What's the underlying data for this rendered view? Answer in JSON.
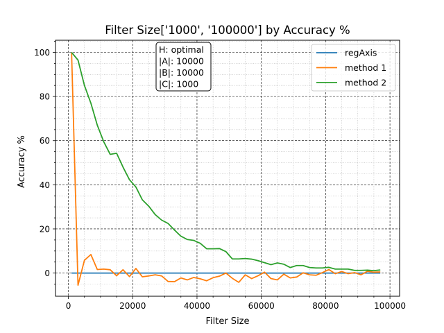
{
  "chart_data": {
    "type": "line",
    "title": "Filter Size['1000', '100000'] by Accuracy %",
    "xlabel": "Filter Size",
    "ylabel": "Accuracy %",
    "xlim": [
      -4000,
      103000
    ],
    "ylim": [
      -10.5,
      105.5
    ],
    "xticks": [
      0,
      20000,
      40000,
      60000,
      80000,
      100000
    ],
    "yticks": [
      0,
      20,
      40,
      60,
      80,
      100
    ],
    "xtick_labels": [
      "0",
      "20000",
      "40000",
      "60000",
      "80000",
      "100000"
    ],
    "ytick_labels": [
      "0",
      "20",
      "40",
      "60",
      "80",
      "100"
    ],
    "grid": true,
    "legend_position": "upper-right",
    "annotation": [
      "H: optimal",
      "|A|: 10000",
      "|B|: 10000",
      "|C|: 1000"
    ],
    "x": [
      1000,
      3000,
      5000,
      7000,
      9000,
      11000,
      13000,
      15000,
      17000,
      19000,
      21000,
      23000,
      25000,
      27000,
      29000,
      31000,
      33000,
      35000,
      37000,
      39000,
      41000,
      43000,
      45000,
      47000,
      49000,
      51000,
      53000,
      55000,
      57000,
      59000,
      61000,
      63000,
      65000,
      67000,
      69000,
      71000,
      73000,
      75000,
      77000,
      79000,
      81000,
      83000,
      85000,
      87000,
      89000,
      91000,
      93000,
      95000,
      97000
    ],
    "series": [
      {
        "name": "regAxis",
        "color": "#1f77b4",
        "values": [
          0,
          0,
          0,
          0,
          0,
          0,
          0,
          0,
          0,
          0,
          0,
          0,
          0,
          0,
          0,
          0,
          0,
          0,
          0,
          0,
          0,
          0,
          0,
          0,
          0,
          0,
          0,
          0,
          0,
          0,
          0,
          0,
          0,
          0,
          0,
          0,
          0,
          0,
          0,
          0,
          0,
          0,
          0,
          0,
          0,
          0,
          0,
          0,
          0
        ]
      },
      {
        "name": "method 1",
        "color": "#ff7f0e",
        "values": [
          100,
          -5.5,
          5.8,
          8.4,
          1.6,
          1.8,
          1.5,
          -1.2,
          1.5,
          -1.6,
          2.1,
          -1.7,
          -1.3,
          -0.8,
          -1.3,
          -3.8,
          -3.9,
          -2.2,
          -3.1,
          -2,
          -2.6,
          -3.5,
          -2.1,
          -1.4,
          0,
          -2.4,
          -4.2,
          -0.8,
          -2.5,
          -1.2,
          0.4,
          -2.5,
          -3.1,
          -0.5,
          -2.2,
          -1.8,
          0.1,
          -0.8,
          -1,
          0.2,
          1.6,
          -0.3,
          0.7,
          -0.3,
          0.2,
          -0.8,
          0.8,
          0.4,
          0.5
        ]
      },
      {
        "name": "method 2",
        "color": "#2ca02c",
        "values": [
          100,
          96.5,
          85,
          77,
          67,
          59.5,
          53.8,
          54.3,
          48,
          42.3,
          39,
          33.2,
          30.3,
          26.5,
          24,
          22.5,
          19.5,
          16.7,
          15.2,
          14.8,
          13.5,
          11,
          11,
          11.1,
          9.7,
          6.4,
          6.4,
          6.6,
          6.3,
          5.6,
          4.7,
          3.8,
          4.6,
          4,
          2.5,
          3.4,
          3.4,
          2.5,
          2.3,
          2.3,
          2.6,
          1.8,
          1.8,
          1.8,
          1.2,
          1.2,
          1.3,
          1.1,
          1.4
        ]
      }
    ]
  }
}
